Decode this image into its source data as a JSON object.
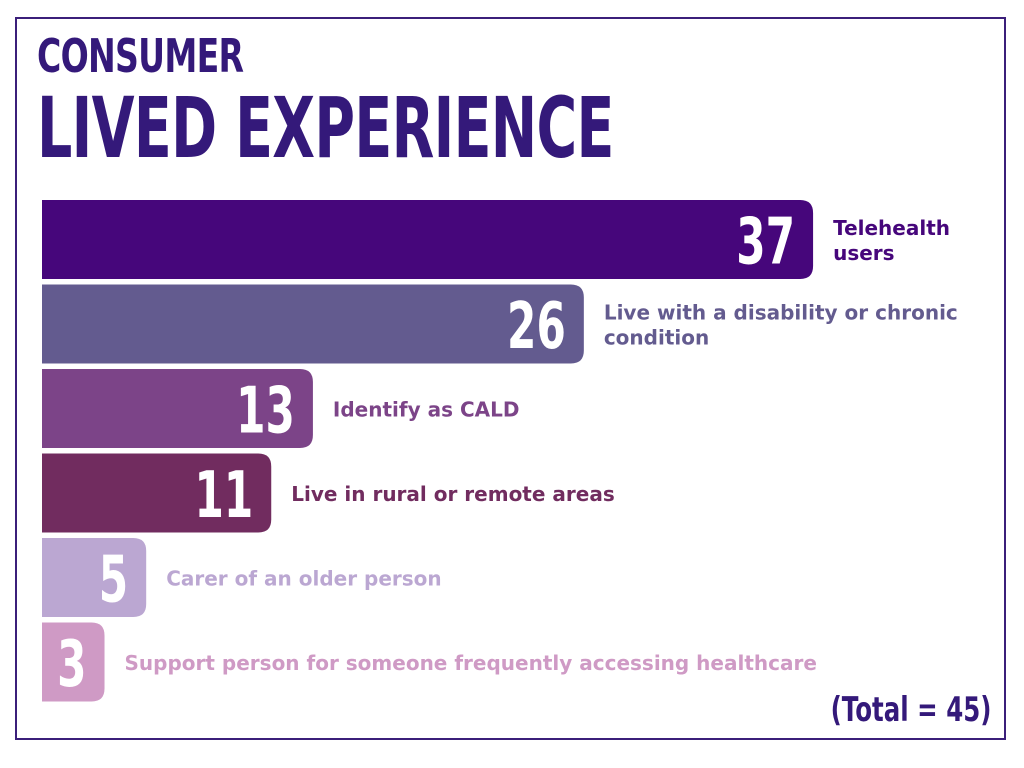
{
  "header": {
    "title_line1": "CONSUMER",
    "title_line2": "LIVED EXPERIENCE"
  },
  "footer": {
    "total_label": "(Total = 45)"
  },
  "colors": {
    "title": "#34197a",
    "frame": "#3b1f7a",
    "total": "#34197a"
  },
  "chart_data": {
    "type": "bar",
    "orientation": "horizontal",
    "title": "",
    "xlabel": "",
    "ylabel": "",
    "xlim": [
      0,
      45
    ],
    "grid": false,
    "legend": "none",
    "categories": [
      [
        "Telehealth",
        "users"
      ],
      [
        "Live with a disability or chronic",
        "condition"
      ],
      [
        "Identify as CALD"
      ],
      [
        "Live in rural or remote areas"
      ],
      [
        "Carer of an older person"
      ],
      [
        "Support person for someone frequently accessing healthcare"
      ]
    ],
    "values": [
      37,
      26,
      13,
      11,
      5,
      3
    ],
    "colors": [
      "#46067b",
      "#635b8f",
      "#7c4488",
      "#712c5f",
      "#bba7d2",
      "#cf9ac5"
    ]
  }
}
